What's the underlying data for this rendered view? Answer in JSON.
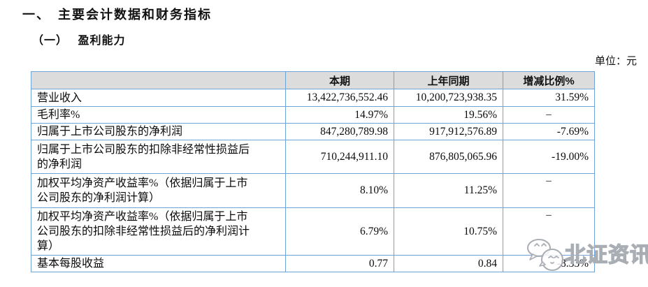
{
  "page": {
    "section_title": "一、　主要会计数据和财务指标",
    "subsection_title": "（一）　 盈利能力",
    "unit_label": "单位：元"
  },
  "table": {
    "headers": [
      "",
      "本期",
      "上年同期",
      "增减比例%"
    ],
    "rows": [
      {
        "label": "营业收入",
        "current": "13,422,736,552.46",
        "prior": "10,200,723,938.35",
        "change": "31.59%"
      },
      {
        "label": "毛利率%",
        "current": "14.97%",
        "prior": "19.56%",
        "change": "–",
        "dash": true
      },
      {
        "label": "归属于上市公司股东的净利润",
        "current": "847,280,789.98",
        "prior": "917,912,576.89",
        "change": "-7.69%"
      },
      {
        "label": "归属于上市公司股东的扣除非经常性损益后的净利润",
        "current": "710,244,911.10",
        "prior": "876,805,065.96",
        "change": "-19.00%"
      },
      {
        "label": "加权平均净资产收益率%（依据归属于上市公司股东的净利润计算）",
        "current": "8.10%",
        "prior": "11.25%",
        "change": "–",
        "dash": true,
        "dash_top": true
      },
      {
        "label": "加权平均净资产收益率%（依据归属于上市公司股东的扣除非经常性损益后的净利润计算）",
        "current": "6.79%",
        "prior": "10.75%",
        "change": "–",
        "dash": true,
        "dash_top": true
      },
      {
        "label": "基本每股收益",
        "current": "0.77",
        "prior": "0.84",
        "change": "-8.33%",
        "obscured_by_watermark": true
      }
    ]
  },
  "watermark": {
    "icon": "chat-bubble-mascot-icon",
    "text": "北证资讯",
    "outline_color": "#a9aeb5"
  },
  "colors": {
    "table_border": "#6fa3d7",
    "header_background": "#dcdcdc",
    "text": "#111111"
  }
}
